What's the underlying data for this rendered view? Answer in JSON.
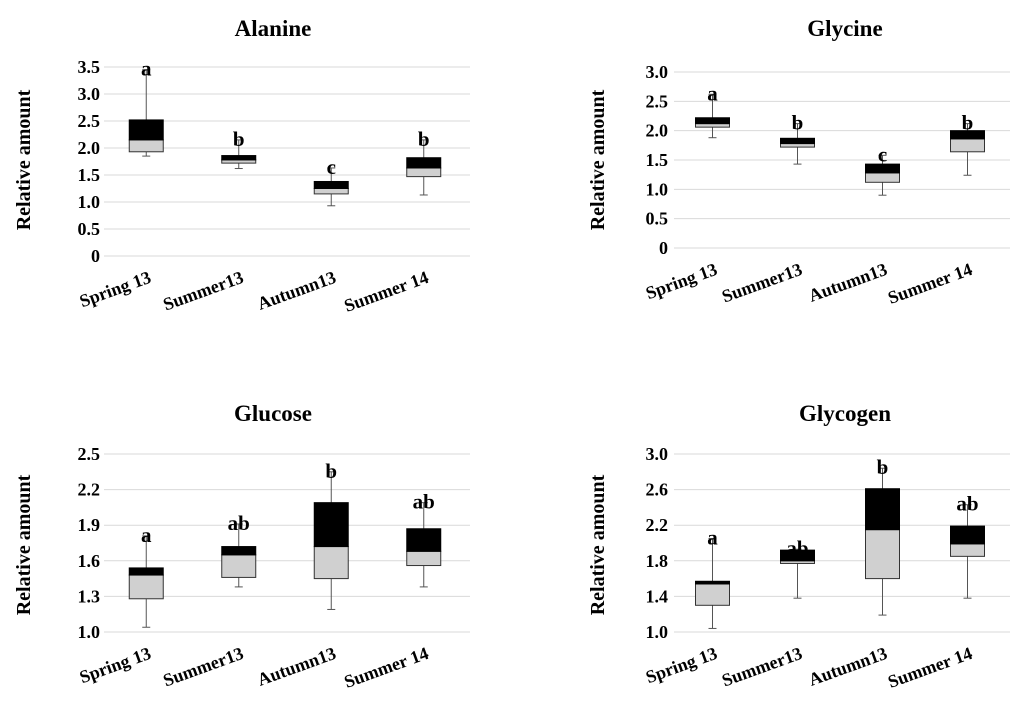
{
  "chart_data": [
    {
      "type": "box",
      "title": "Alanine",
      "ylabel": "Relative amount",
      "categories": [
        "Spring 13",
        "Summer13",
        "Autumn13",
        "Summer 14"
      ],
      "ylim": [
        0,
        3.5
      ],
      "yticks": [
        "0",
        "0.5",
        "1.0",
        "1.5",
        "2.0",
        "2.5",
        "3.0",
        "3.5"
      ],
      "ytick_values": [
        0,
        0.5,
        1.0,
        1.5,
        2.0,
        2.5,
        3.0,
        3.5
      ],
      "grid": true,
      "boxes": [
        {
          "min": 1.85,
          "q1": 1.93,
          "median": 2.15,
          "q3": 2.52,
          "max": 3.45,
          "letter": "a"
        },
        {
          "min": 1.62,
          "q1": 1.72,
          "median": 1.78,
          "q3": 1.86,
          "max": 2.15,
          "letter": "b"
        },
        {
          "min": 0.93,
          "q1": 1.15,
          "median": 1.25,
          "q3": 1.38,
          "max": 1.63,
          "letter": "c"
        },
        {
          "min": 1.13,
          "q1": 1.47,
          "median": 1.63,
          "q3": 1.82,
          "max": 2.15,
          "letter": "b"
        }
      ]
    },
    {
      "type": "box",
      "title": "Glycine",
      "ylabel": "Relative amount",
      "categories": [
        "Spring 13",
        "Summer13",
        "Autumn13",
        "Summer 14"
      ],
      "ylim": [
        0,
        3.0
      ],
      "yticks": [
        "0",
        "0.5",
        "1.0",
        "1.5",
        "2.0",
        "2.5",
        "3.0"
      ],
      "ytick_values": [
        0,
        0.5,
        1.0,
        1.5,
        2.0,
        2.5,
        3.0
      ],
      "grid": true,
      "boxes": [
        {
          "min": 1.88,
          "q1": 2.06,
          "median": 2.12,
          "q3": 2.22,
          "max": 2.62,
          "letter": "a"
        },
        {
          "min": 1.43,
          "q1": 1.72,
          "median": 1.78,
          "q3": 1.87,
          "max": 2.12,
          "letter": "b"
        },
        {
          "min": 0.9,
          "q1": 1.12,
          "median": 1.28,
          "q3": 1.43,
          "max": 1.58,
          "letter": "c"
        },
        {
          "min": 1.24,
          "q1": 1.64,
          "median": 1.86,
          "q3": 2.0,
          "max": 2.12,
          "letter": "b"
        }
      ]
    },
    {
      "type": "box",
      "title": "Glucose",
      "ylabel": "Relative amount",
      "categories": [
        "Spring 13",
        "Summer13",
        "Autumn13",
        "Summer 14"
      ],
      "ylim": [
        1.0,
        2.5
      ],
      "yticks": [
        "1.0",
        "1.3",
        "1.6",
        "1.9",
        "2.2",
        "2.5"
      ],
      "ytick_values": [
        1.0,
        1.3,
        1.6,
        1.9,
        2.2,
        2.5
      ],
      "grid": true,
      "boxes": [
        {
          "min": 1.04,
          "q1": 1.28,
          "median": 1.48,
          "q3": 1.54,
          "max": 1.81,
          "letter": "a"
        },
        {
          "min": 1.38,
          "q1": 1.46,
          "median": 1.65,
          "q3": 1.72,
          "max": 1.91,
          "letter": "ab"
        },
        {
          "min": 1.19,
          "q1": 1.45,
          "median": 1.72,
          "q3": 2.09,
          "max": 2.35,
          "letter": "b"
        },
        {
          "min": 1.38,
          "q1": 1.56,
          "median": 1.68,
          "q3": 1.87,
          "max": 2.09,
          "letter": "ab"
        }
      ]
    },
    {
      "type": "box",
      "title": "Glycogen",
      "ylabel": "Relative amount",
      "categories": [
        "Spring 13",
        "Summer13",
        "Autumn13",
        "Summer 14"
      ],
      "ylim": [
        1.0,
        3.0
      ],
      "yticks": [
        "1.0",
        "1.4",
        "1.8",
        "2.2",
        "2.6",
        "3.0"
      ],
      "ytick_values": [
        1.0,
        1.4,
        1.8,
        2.2,
        2.6,
        3.0
      ],
      "grid": true,
      "boxes": [
        {
          "min": 1.04,
          "q1": 1.3,
          "median": 1.54,
          "q3": 1.57,
          "max": 2.05,
          "letter": "a"
        },
        {
          "min": 1.38,
          "q1": 1.77,
          "median": 1.8,
          "q3": 1.92,
          "max": 1.93,
          "letter": "ab"
        },
        {
          "min": 1.19,
          "q1": 1.6,
          "median": 2.15,
          "q3": 2.61,
          "max": 2.84,
          "letter": "b"
        },
        {
          "min": 1.38,
          "q1": 1.85,
          "median": 1.99,
          "q3": 2.19,
          "max": 2.43,
          "letter": "ab"
        }
      ]
    }
  ]
}
